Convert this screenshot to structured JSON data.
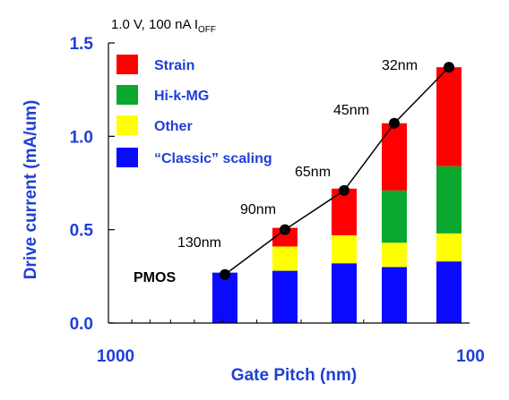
{
  "chart_data": {
    "type": "bar",
    "stacked": true,
    "condition": "1.0 V, 100 nA I",
    "condition_sub": "OFF",
    "xlabel": "Gate Pitch (nm)",
    "ylabel": "Drive current (mA/um)",
    "x_scale": "log",
    "x_reversed": true,
    "x_ticks": [
      "1000",
      "100"
    ],
    "y_ticks": [
      "0.0",
      "0.5",
      "1.0",
      "1.5"
    ],
    "ylim": [
      0,
      1.5
    ],
    "categories": [
      "130nm",
      "90nm",
      "65nm",
      "45nm",
      "32nm"
    ],
    "series": [
      {
        "name": "“Classic” scaling",
        "color": "#0a0aff",
        "values": [
          0.27,
          0.28,
          0.32,
          0.3,
          0.33
        ]
      },
      {
        "name": "Other",
        "color": "#ffff00",
        "values": [
          0.0,
          0.13,
          0.15,
          0.13,
          0.15
        ]
      },
      {
        "name": "Hi-k-MG",
        "color": "#0aa82e",
        "values": [
          0.0,
          0.0,
          0.0,
          0.28,
          0.36
        ]
      },
      {
        "name": "Strain",
        "color": "#ff0000",
        "values": [
          0.0,
          0.1,
          0.25,
          0.36,
          0.53
        ]
      }
    ],
    "line_values": [
      0.26,
      0.5,
      0.71,
      1.07,
      1.37
    ],
    "point_labels": [
      "130nm",
      "90nm",
      "65nm",
      "45nm",
      "32nm"
    ],
    "annotation": "PMOS",
    "legend_order": [
      "Strain",
      "Hi-k-MG",
      "Other",
      "“Classic” scaling"
    ],
    "legend_position": "top-left",
    "grid": false
  }
}
